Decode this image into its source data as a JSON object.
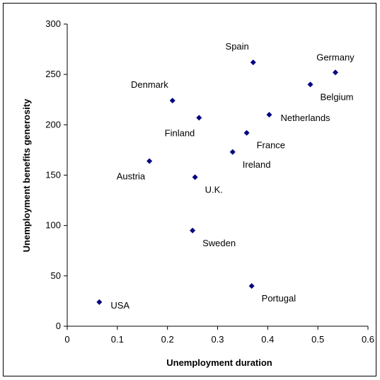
{
  "chart_data": {
    "type": "scatter",
    "title": "",
    "xlabel": "Unemployment duration",
    "ylabel": "Unemployment benefits generosity",
    "xlim": [
      0,
      0.6
    ],
    "ylim": [
      0,
      300
    ],
    "xticks": [
      0,
      0.1,
      0.2,
      0.3,
      0.4,
      0.5,
      0.6
    ],
    "yticks": [
      0,
      50,
      100,
      150,
      200,
      250,
      300
    ],
    "xtick_labels": [
      "0",
      "0.1",
      "0.2",
      "0.3",
      "0.4",
      "0.5",
      "0.6"
    ],
    "ytick_labels": [
      "0",
      "50",
      "100",
      "150",
      "200",
      "250",
      "300"
    ],
    "grid": false,
    "legend": "none",
    "marker_color": "#000080",
    "points": [
      {
        "label": "USA",
        "x": 0.064,
        "y": 24,
        "label_pos": "right"
      },
      {
        "label": "Austria",
        "x": 0.164,
        "y": 164,
        "label_pos": "below-left"
      },
      {
        "label": "Denmark",
        "x": 0.21,
        "y": 224,
        "label_pos": "above-left"
      },
      {
        "label": "Finland",
        "x": 0.263,
        "y": 207,
        "label_pos": "below-left"
      },
      {
        "label": "U.K.",
        "x": 0.255,
        "y": 148,
        "label_pos": "below-right"
      },
      {
        "label": "Sweden",
        "x": 0.25,
        "y": 95,
        "label_pos": "below-right"
      },
      {
        "label": "Ireland",
        "x": 0.33,
        "y": 173,
        "label_pos": "below-right"
      },
      {
        "label": "France",
        "x": 0.358,
        "y": 192,
        "label_pos": "below-right"
      },
      {
        "label": "Portugal",
        "x": 0.368,
        "y": 40,
        "label_pos": "below-right"
      },
      {
        "label": "Spain",
        "x": 0.371,
        "y": 262,
        "label_pos": "above-left"
      },
      {
        "label": "Netherlands",
        "x": 0.403,
        "y": 210,
        "label_pos": "right"
      },
      {
        "label": "Belgium",
        "x": 0.485,
        "y": 240,
        "label_pos": "below-right"
      },
      {
        "label": "Germany",
        "x": 0.535,
        "y": 252,
        "label_pos": "above"
      }
    ]
  }
}
